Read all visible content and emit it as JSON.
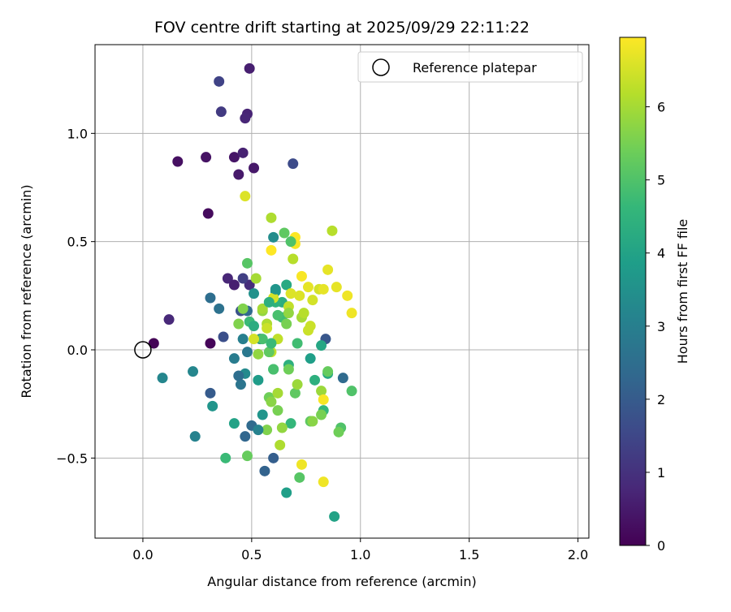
{
  "chart_data": {
    "type": "scatter",
    "title": "FOV centre drift starting at 2025/09/29 22:11:22",
    "xlabel": "Angular distance from reference (arcmin)",
    "ylabel": "Rotation from reference (arcmin)",
    "xlim": [
      -0.22,
      2.05
    ],
    "ylim": [
      -0.87,
      1.41
    ],
    "xticks": [
      0.0,
      0.5,
      1.0,
      1.5,
      2.0
    ],
    "xtick_labels": [
      "0.0",
      "0.5",
      "1.0",
      "1.5",
      "2.0"
    ],
    "yticks": [
      -0.5,
      0.0,
      0.5,
      1.0
    ],
    "ytick_labels": [
      "−0.5",
      "0.0",
      "0.5",
      "1.0"
    ],
    "grid": true,
    "legend": {
      "placement": "top-right",
      "entries": [
        "Reference platepar"
      ]
    },
    "reference_point": {
      "x": 0.0,
      "y": 0.0,
      "label": "Reference platepar"
    },
    "colorbar": {
      "label": "Hours from first FF file",
      "range": [
        0,
        6.95
      ],
      "ticks": [
        0,
        1,
        2,
        3,
        4,
        5,
        6
      ],
      "tick_labels": [
        "0",
        "1",
        "2",
        "3",
        "4",
        "5",
        "6"
      ],
      "colormap": "viridis"
    },
    "colormap_stops": [
      "#440154",
      "#482878",
      "#3e4989",
      "#31688e",
      "#26828e",
      "#1f9e89",
      "#35b779",
      "#6ece58",
      "#b5de2b",
      "#fde725"
    ],
    "points": [
      {
        "x": 0.05,
        "y": 0.03,
        "h": 0.05
      },
      {
        "x": 0.31,
        "y": 0.03,
        "h": 0.1
      },
      {
        "x": 0.3,
        "y": 0.63,
        "h": 0.2
      },
      {
        "x": 0.16,
        "y": 0.87,
        "h": 0.3
      },
      {
        "x": 0.29,
        "y": 0.89,
        "h": 0.35
      },
      {
        "x": 0.42,
        "y": 0.89,
        "h": 0.4
      },
      {
        "x": 0.44,
        "y": 0.81,
        "h": 0.5
      },
      {
        "x": 0.51,
        "y": 0.84,
        "h": 0.45
      },
      {
        "x": 0.49,
        "y": 1.3,
        "h": 0.6
      },
      {
        "x": 0.46,
        "y": 0.91,
        "h": 0.65
      },
      {
        "x": 0.48,
        "y": 1.09,
        "h": 0.7
      },
      {
        "x": 0.47,
        "y": 1.07,
        "h": 0.75
      },
      {
        "x": 0.12,
        "y": 0.14,
        "h": 0.8
      },
      {
        "x": 0.39,
        "y": 0.33,
        "h": 0.75
      },
      {
        "x": 0.42,
        "y": 0.3,
        "h": 0.6
      },
      {
        "x": 0.49,
        "y": 0.3,
        "h": 0.9
      },
      {
        "x": 0.36,
        "y": 1.1,
        "h": 1.2
      },
      {
        "x": 0.35,
        "y": 1.24,
        "h": 1.4
      },
      {
        "x": 0.46,
        "y": 0.33,
        "h": 1.3
      },
      {
        "x": 0.69,
        "y": 0.86,
        "h": 1.6
      },
      {
        "x": 0.45,
        "y": 0.18,
        "h": 1.8
      },
      {
        "x": 0.37,
        "y": 0.06,
        "h": 1.7
      },
      {
        "x": 0.84,
        "y": 0.05,
        "h": 1.9
      },
      {
        "x": 0.31,
        "y": -0.2,
        "h": 2.0
      },
      {
        "x": 0.6,
        "y": -0.5,
        "h": 2.1
      },
      {
        "x": 0.56,
        "y": -0.56,
        "h": 2.2
      },
      {
        "x": 0.47,
        "y": -0.4,
        "h": 2.3
      },
      {
        "x": 0.5,
        "y": -0.35,
        "h": 2.4
      },
      {
        "x": 0.92,
        "y": -0.13,
        "h": 2.4
      },
      {
        "x": 0.31,
        "y": 0.24,
        "h": 2.5
      },
      {
        "x": 0.35,
        "y": 0.19,
        "h": 2.6
      },
      {
        "x": 0.48,
        "y": 0.18,
        "h": 2.4
      },
      {
        "x": 0.45,
        "y": -0.16,
        "h": 2.7
      },
      {
        "x": 0.48,
        "y": -0.01,
        "h": 2.8
      },
      {
        "x": 0.42,
        "y": -0.04,
        "h": 2.9
      },
      {
        "x": 0.46,
        "y": 0.05,
        "h": 3.0
      },
      {
        "x": 0.24,
        "y": -0.4,
        "h": 3.1
      },
      {
        "x": 0.23,
        "y": -0.1,
        "h": 3.2
      },
      {
        "x": 0.09,
        "y": -0.13,
        "h": 3.2
      },
      {
        "x": 0.47,
        "y": -0.11,
        "h": 3.3
      },
      {
        "x": 0.54,
        "y": 0.05,
        "h": 3.3
      },
      {
        "x": 0.6,
        "y": 0.52,
        "h": 3.4
      },
      {
        "x": 0.51,
        "y": 0.26,
        "h": 3.5
      },
      {
        "x": 0.32,
        "y": -0.26,
        "h": 3.6
      },
      {
        "x": 0.55,
        "y": -0.3,
        "h": 3.6
      },
      {
        "x": 0.61,
        "y": 0.27,
        "h": 3.7
      },
      {
        "x": 0.53,
        "y": -0.14,
        "h": 3.8
      },
      {
        "x": 0.77,
        "y": -0.04,
        "h": 3.9
      },
      {
        "x": 0.66,
        "y": -0.66,
        "h": 3.9
      },
      {
        "x": 0.88,
        "y": -0.77,
        "h": 4.0
      },
      {
        "x": 0.42,
        "y": -0.34,
        "h": 4.0
      },
      {
        "x": 0.82,
        "y": 0.02,
        "h": 4.1
      },
      {
        "x": 0.66,
        "y": 0.3,
        "h": 4.2
      },
      {
        "x": 0.85,
        "y": -0.11,
        "h": 4.2
      },
      {
        "x": 0.64,
        "y": 0.22,
        "h": 4.3
      },
      {
        "x": 0.67,
        "y": -0.07,
        "h": 4.4
      },
      {
        "x": 0.79,
        "y": -0.14,
        "h": 4.4
      },
      {
        "x": 0.6,
        "y": -0.09,
        "h": 4.5
      },
      {
        "x": 0.61,
        "y": 0.22,
        "h": 4.5
      },
      {
        "x": 0.83,
        "y": -0.28,
        "h": 4.6
      },
      {
        "x": 0.68,
        "y": -0.34,
        "h": 4.6
      },
      {
        "x": 0.49,
        "y": 0.13,
        "h": 4.7
      },
      {
        "x": 0.38,
        "y": -0.5,
        "h": 4.7
      },
      {
        "x": 0.64,
        "y": 0.15,
        "h": 4.8
      },
      {
        "x": 0.71,
        "y": 0.03,
        "h": 4.8
      },
      {
        "x": 0.6,
        "y": -0.09,
        "h": 4.9
      },
      {
        "x": 0.55,
        "y": 0.05,
        "h": 4.9
      },
      {
        "x": 0.91,
        "y": -0.36,
        "h": 5.0
      },
      {
        "x": 0.96,
        "y": -0.19,
        "h": 5.0
      },
      {
        "x": 0.72,
        "y": -0.59,
        "h": 5.1
      },
      {
        "x": 0.48,
        "y": 0.4,
        "h": 5.1
      },
      {
        "x": 0.7,
        "y": -0.2,
        "h": 5.2
      },
      {
        "x": 0.77,
        "y": -0.33,
        "h": 5.2
      },
      {
        "x": 0.85,
        "y": -0.1,
        "h": 5.3
      },
      {
        "x": 0.48,
        "y": -0.49,
        "h": 5.3
      },
      {
        "x": 0.58,
        "y": -0.22,
        "h": 5.4
      },
      {
        "x": 0.67,
        "y": -0.09,
        "h": 5.4
      },
      {
        "x": 0.9,
        "y": -0.38,
        "h": 5.4
      },
      {
        "x": 0.82,
        "y": -0.3,
        "h": 5.5
      },
      {
        "x": 0.62,
        "y": -0.28,
        "h": 5.5
      },
      {
        "x": 0.66,
        "y": 0.12,
        "h": 5.5
      },
      {
        "x": 0.44,
        "y": 0.12,
        "h": 5.6
      },
      {
        "x": 0.46,
        "y": 0.19,
        "h": 5.6
      },
      {
        "x": 0.78,
        "y": -0.33,
        "h": 5.7
      },
      {
        "x": 0.59,
        "y": -0.24,
        "h": 5.7
      },
      {
        "x": 0.64,
        "y": -0.36,
        "h": 5.8
      },
      {
        "x": 0.55,
        "y": 0.18,
        "h": 5.8
      },
      {
        "x": 0.53,
        "y": -0.02,
        "h": 5.8
      },
      {
        "x": 0.82,
        "y": -0.19,
        "h": 5.9
      },
      {
        "x": 0.71,
        "y": -0.16,
        "h": 5.9
      },
      {
        "x": 0.62,
        "y": -0.2,
        "h": 6.0
      },
      {
        "x": 0.52,
        "y": 0.33,
        "h": 6.0
      },
      {
        "x": 0.73,
        "y": 0.15,
        "h": 6.0
      },
      {
        "x": 0.57,
        "y": 0.12,
        "h": 6.1
      },
      {
        "x": 0.59,
        "y": 0.61,
        "h": 6.1
      },
      {
        "x": 0.63,
        "y": -0.44,
        "h": 6.1
      },
      {
        "x": 0.69,
        "y": 0.42,
        "h": 6.2
      },
      {
        "x": 0.74,
        "y": 0.17,
        "h": 6.2
      },
      {
        "x": 0.87,
        "y": 0.55,
        "h": 6.2
      },
      {
        "x": 0.59,
        "y": -0.01,
        "h": 6.3
      },
      {
        "x": 0.62,
        "y": 0.05,
        "h": 6.3
      },
      {
        "x": 0.67,
        "y": 0.2,
        "h": 6.3
      },
      {
        "x": 0.76,
        "y": 0.09,
        "h": 6.4
      },
      {
        "x": 0.77,
        "y": 0.11,
        "h": 6.4
      },
      {
        "x": 0.57,
        "y": 0.1,
        "h": 6.4
      },
      {
        "x": 0.81,
        "y": 0.28,
        "h": 6.5
      },
      {
        "x": 0.78,
        "y": 0.23,
        "h": 6.5
      },
      {
        "x": 0.51,
        "y": 0.05,
        "h": 6.5
      },
      {
        "x": 0.6,
        "y": 0.24,
        "h": 6.5
      },
      {
        "x": 0.68,
        "y": 0.26,
        "h": 6.6
      },
      {
        "x": 0.47,
        "y": 0.71,
        "h": 6.6
      },
      {
        "x": 0.72,
        "y": 0.25,
        "h": 6.6
      },
      {
        "x": 0.76,
        "y": 0.29,
        "h": 6.7
      },
      {
        "x": 0.83,
        "y": 0.28,
        "h": 6.7
      },
      {
        "x": 0.85,
        "y": 0.37,
        "h": 6.7
      },
      {
        "x": 0.89,
        "y": 0.29,
        "h": 6.7
      },
      {
        "x": 0.94,
        "y": 0.25,
        "h": 6.8
      },
      {
        "x": 0.96,
        "y": 0.17,
        "h": 6.8
      },
      {
        "x": 0.73,
        "y": -0.53,
        "h": 6.8
      },
      {
        "x": 0.83,
        "y": -0.61,
        "h": 6.8
      },
      {
        "x": 0.83,
        "y": -0.23,
        "h": 6.9
      },
      {
        "x": 0.73,
        "y": 0.34,
        "h": 6.9
      },
      {
        "x": 0.7,
        "y": 0.49,
        "h": 6.9
      },
      {
        "x": 0.7,
        "y": 0.52,
        "h": 6.95
      },
      {
        "x": 0.59,
        "y": 0.46,
        "h": 6.95
      },
      {
        "x": 0.55,
        "y": 0.19,
        "h": 6.0
      },
      {
        "x": 0.65,
        "y": 0.54,
        "h": 5.2
      },
      {
        "x": 0.68,
        "y": 0.5,
        "h": 5.0
      },
      {
        "x": 0.61,
        "y": 0.28,
        "h": 3.6
      },
      {
        "x": 0.58,
        "y": 0.22,
        "h": 4.4
      },
      {
        "x": 0.62,
        "y": 0.16,
        "h": 4.9
      },
      {
        "x": 0.67,
        "y": 0.17,
        "h": 5.8
      },
      {
        "x": 0.51,
        "y": 0.11,
        "h": 4.3
      },
      {
        "x": 0.58,
        "y": -0.01,
        "h": 5.2
      },
      {
        "x": 0.57,
        "y": -0.37,
        "h": 5.6
      },
      {
        "x": 0.53,
        "y": -0.37,
        "h": 3.1
      },
      {
        "x": 0.44,
        "y": -0.12,
        "h": 2.5
      },
      {
        "x": 0.59,
        "y": 0.03,
        "h": 4.7
      }
    ]
  }
}
